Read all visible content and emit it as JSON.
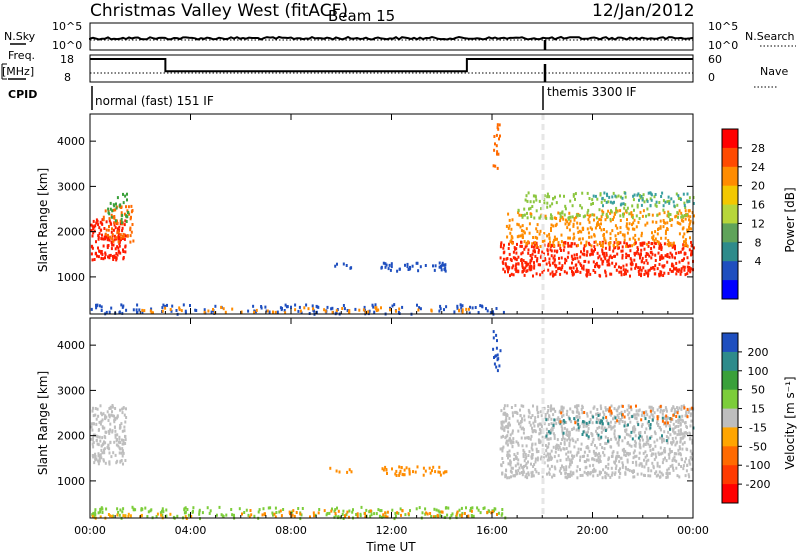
{
  "header": {
    "title": "Christmas Valley West (fitACF)",
    "beam": "Beam 15",
    "date": "12/Jan/2012"
  },
  "top_panels": {
    "nsky_label": "N.Sky",
    "nsky_ticks": [
      "10^5",
      "10^0"
    ],
    "nsearch_label": "N.Search",
    "nsearch_ticks": [
      "10^5",
      "10^0"
    ],
    "freq_label_1": "Freq.",
    "freq_label_2": "[MHz]",
    "freq_ticks": [
      "18",
      "8"
    ],
    "nave_label": "Nave",
    "nave_ticks": [
      "60",
      "0"
    ],
    "cpid_label": "CPID",
    "cpid_segments": [
      {
        "label": "normal (fast) 151 IF",
        "start_hour": 0
      },
      {
        "label": "themis 3300 IF",
        "start_hour": 18
      }
    ],
    "freq_steps": [
      {
        "from_hour": 0,
        "to_hour": 3,
        "level": 0.85
      },
      {
        "from_hour": 3,
        "to_hour": 15,
        "level": 0.4
      },
      {
        "from_hour": 15,
        "to_hour": 24,
        "level": 0.85
      }
    ]
  },
  "chart_data": [
    {
      "type": "heatmap",
      "name": "power",
      "ylabel": "Slant Range [km]",
      "xlabel": "Time UT",
      "x_ticks": [
        "00:00",
        "04:00",
        "08:00",
        "12:00",
        "16:00",
        "20:00",
        "00:00"
      ],
      "xlim_hours": [
        0,
        24
      ],
      "y_ticks": [
        1000,
        2000,
        3000,
        4000
      ],
      "ylim": [
        180,
        4600
      ],
      "colorbar_label": "Power [dB]",
      "colorbar_ticks": [
        "28",
        "24",
        "20",
        "16",
        "12",
        "8",
        "4"
      ],
      "colorbar_colors": [
        "#ff0000",
        "#ff4a00",
        "#ff8c00",
        "#f3c800",
        "#b7d63a",
        "#5fa35a",
        "#2e8b8b",
        "#1f4fbf",
        "#0000ff"
      ],
      "regions": [
        {
          "t0": 0.0,
          "t1": 1.4,
          "r0": 1400,
          "r1": 2300,
          "c": "#ff1a00",
          "d": 0.95
        },
        {
          "t0": 0.5,
          "t1": 1.7,
          "r0": 1800,
          "r1": 2600,
          "c": "#ff6a00",
          "d": 0.6
        },
        {
          "t0": 0.6,
          "t1": 1.5,
          "r0": 2200,
          "r1": 2900,
          "c": "#3aa03a",
          "d": 0.4
        },
        {
          "t0": 0.0,
          "t1": 16.5,
          "r0": 200,
          "r1": 420,
          "c": "#1f4fbf",
          "d": 0.35
        },
        {
          "t0": 2.0,
          "t1": 16.0,
          "r0": 230,
          "r1": 360,
          "c": "#ff8c00",
          "d": 0.3
        },
        {
          "t0": 11.5,
          "t1": 14.2,
          "r0": 1150,
          "r1": 1350,
          "c": "#1f4fbf",
          "d": 0.7
        },
        {
          "t0": 9.5,
          "t1": 10.4,
          "r0": 1200,
          "r1": 1320,
          "c": "#1f4fbf",
          "d": 0.5
        },
        {
          "t0": 16.0,
          "t1": 16.3,
          "r0": 3400,
          "r1": 4400,
          "c": "#ff6a00",
          "d": 0.5
        },
        {
          "t0": 16.3,
          "t1": 24.0,
          "r0": 1050,
          "r1": 1800,
          "c": "#ff2000",
          "d": 0.85
        },
        {
          "t0": 16.5,
          "t1": 24.0,
          "r0": 1700,
          "r1": 2500,
          "c": "#ff8c00",
          "d": 0.5
        },
        {
          "t0": 17.0,
          "t1": 24.0,
          "r0": 2300,
          "r1": 2900,
          "c": "#8cc63f",
          "d": 0.35
        },
        {
          "t0": 20.0,
          "t1": 24.0,
          "r0": 2600,
          "r1": 2900,
          "c": "#3aa0a0",
          "d": 0.4
        }
      ]
    },
    {
      "type": "heatmap",
      "name": "velocity",
      "ylabel": "Slant Range [km]",
      "xlabel": "Time UT",
      "x_ticks": [
        "00:00",
        "04:00",
        "08:00",
        "12:00",
        "16:00",
        "20:00",
        "00:00"
      ],
      "xlim_hours": [
        0,
        24
      ],
      "y_ticks": [
        1000,
        2000,
        3000,
        4000
      ],
      "ylim": [
        180,
        4600
      ],
      "colorbar_label": "Velocity [m s⁻¹]",
      "colorbar_ticks": [
        "200",
        "100",
        "50",
        "15",
        "-15",
        "-50",
        "-100",
        "-200"
      ],
      "colorbar_colors": [
        "#1f4fbf",
        "#2e8b8b",
        "#3aa03a",
        "#7ccd3a",
        "#bebebe",
        "#ffa500",
        "#ff6a00",
        "#ff3a00",
        "#ff0000"
      ],
      "regions": [
        {
          "t0": 0.0,
          "t1": 1.4,
          "r0": 1400,
          "r1": 2700,
          "c": "#bebebe",
          "d": 0.9
        },
        {
          "t0": 0.0,
          "t1": 16.5,
          "r0": 200,
          "r1": 450,
          "c": "#7ccd3a",
          "d": 0.45
        },
        {
          "t0": 0.0,
          "t1": 4.0,
          "r0": 200,
          "r1": 300,
          "c": "#ffa500",
          "d": 0.5
        },
        {
          "t0": 6.0,
          "t1": 16.5,
          "r0": 220,
          "r1": 380,
          "c": "#ff8c00",
          "d": 0.35
        },
        {
          "t0": 11.5,
          "t1": 14.2,
          "r0": 1150,
          "r1": 1350,
          "c": "#ff8c00",
          "d": 0.7
        },
        {
          "t0": 9.5,
          "t1": 10.4,
          "r0": 1200,
          "r1": 1320,
          "c": "#ff8c00",
          "d": 0.5
        },
        {
          "t0": 16.0,
          "t1": 16.3,
          "r0": 3400,
          "r1": 4400,
          "c": "#1f4fbf",
          "d": 0.5
        },
        {
          "t0": 16.3,
          "t1": 24.0,
          "r0": 1100,
          "r1": 2700,
          "c": "#bebebe",
          "d": 0.8
        },
        {
          "t0": 18.0,
          "t1": 24.0,
          "r0": 1900,
          "r1": 2500,
          "c": "#2e8b8b",
          "d": 0.15
        },
        {
          "t0": 18.0,
          "t1": 24.0,
          "r0": 2300,
          "r1": 2700,
          "c": "#ff6a00",
          "d": 0.12
        }
      ]
    }
  ]
}
